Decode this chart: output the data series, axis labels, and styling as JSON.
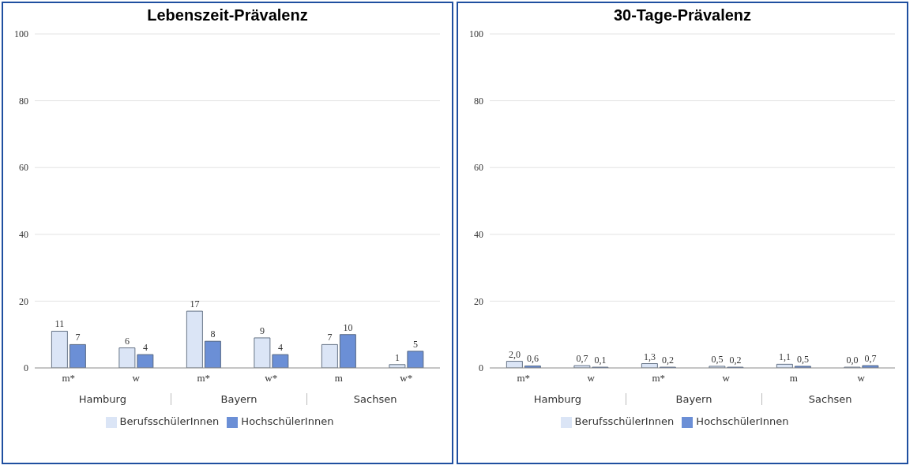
{
  "chart_data": [
    {
      "type": "bar",
      "title": "Lebenszeit-Prävalenz",
      "categories": [
        "m*",
        "w",
        "m*",
        "w*",
        "m",
        "w*"
      ],
      "annotations": [
        "Hamburg",
        "Bayern",
        "Sachsen"
      ],
      "series": [
        {
          "name": "BerufsschülerInnen",
          "color": "#dbe5f6",
          "values": [
            11,
            6,
            17,
            9,
            7,
            1
          ]
        },
        {
          "name": "HochschülerInnen",
          "color": "#6b8fd6",
          "values": [
            7,
            4,
            8,
            4,
            10,
            5
          ]
        }
      ],
      "ylim": [
        0,
        100
      ],
      "yticks": [
        0,
        20,
        40,
        60,
        80,
        100
      ],
      "grid": "y",
      "legend": "bottom",
      "data_labels": true
    },
    {
      "type": "bar",
      "title": "30-Tage-Prävalenz",
      "categories": [
        "m*",
        "w",
        "m*",
        "w",
        "m",
        "w"
      ],
      "annotations": [
        "Hamburg",
        "Bayern",
        "Sachsen"
      ],
      "series": [
        {
          "name": "BerufsschülerInnen",
          "color": "#dbe5f6",
          "values": [
            2.0,
            0.7,
            1.3,
            0.5,
            1.1,
            0.0
          ],
          "value_labels": [
            "2,0",
            "0,7",
            "1,3",
            "0,5",
            "1,1",
            "0,0"
          ]
        },
        {
          "name": "HochschülerInnen",
          "color": "#6b8fd6",
          "values": [
            0.6,
            0.1,
            0.2,
            0.2,
            0.5,
            0.7
          ],
          "value_labels": [
            "0,6",
            "0,1",
            "0,2",
            "0,2",
            "0,5",
            "0,7"
          ]
        }
      ],
      "ylim": [
        0,
        100
      ],
      "yticks": [
        0,
        20,
        40,
        60,
        80,
        100
      ],
      "grid": "y",
      "legend": "bottom"
    }
  ]
}
